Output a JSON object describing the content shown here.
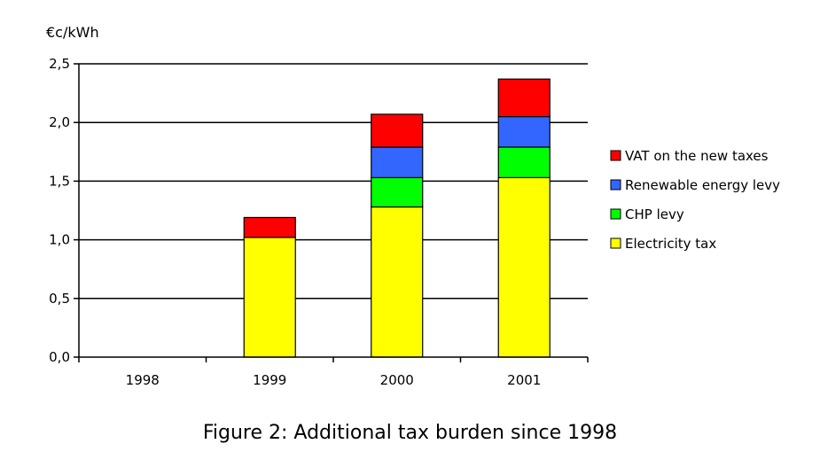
{
  "chart_data": {
    "type": "bar",
    "stacked": true,
    "ylabel": "€c/kWh",
    "ylim": [
      0,
      2.5
    ],
    "yticks": [
      "0,0",
      "0,5",
      "1,0",
      "1,5",
      "2,0",
      "2,5"
    ],
    "ytick_values": [
      0,
      0.5,
      1.0,
      1.5,
      2.0,
      2.5
    ],
    "categories": [
      "1998",
      "1999",
      "2000",
      "2001"
    ],
    "series": [
      {
        "name": "Electricity tax",
        "color": "#ffff00",
        "values": [
          0,
          1.02,
          1.28,
          1.53
        ]
      },
      {
        "name": "CHP levy",
        "color": "#00ff00",
        "values": [
          0,
          0,
          0.25,
          0.26
        ]
      },
      {
        "name": "Renewable energy levy",
        "color": "#3366ff",
        "values": [
          0,
          0,
          0.26,
          0.26
        ]
      },
      {
        "name": "VAT on the new taxes",
        "color": "#ff0000",
        "values": [
          0,
          0.17,
          0.28,
          0.32
        ]
      }
    ],
    "legend_order": [
      "VAT on the new taxes",
      "Renewable energy levy",
      "CHP levy",
      "Electricity tax"
    ],
    "legend_position": "right",
    "grid": true
  },
  "caption": "Figure 2: Additional tax burden since 1998"
}
